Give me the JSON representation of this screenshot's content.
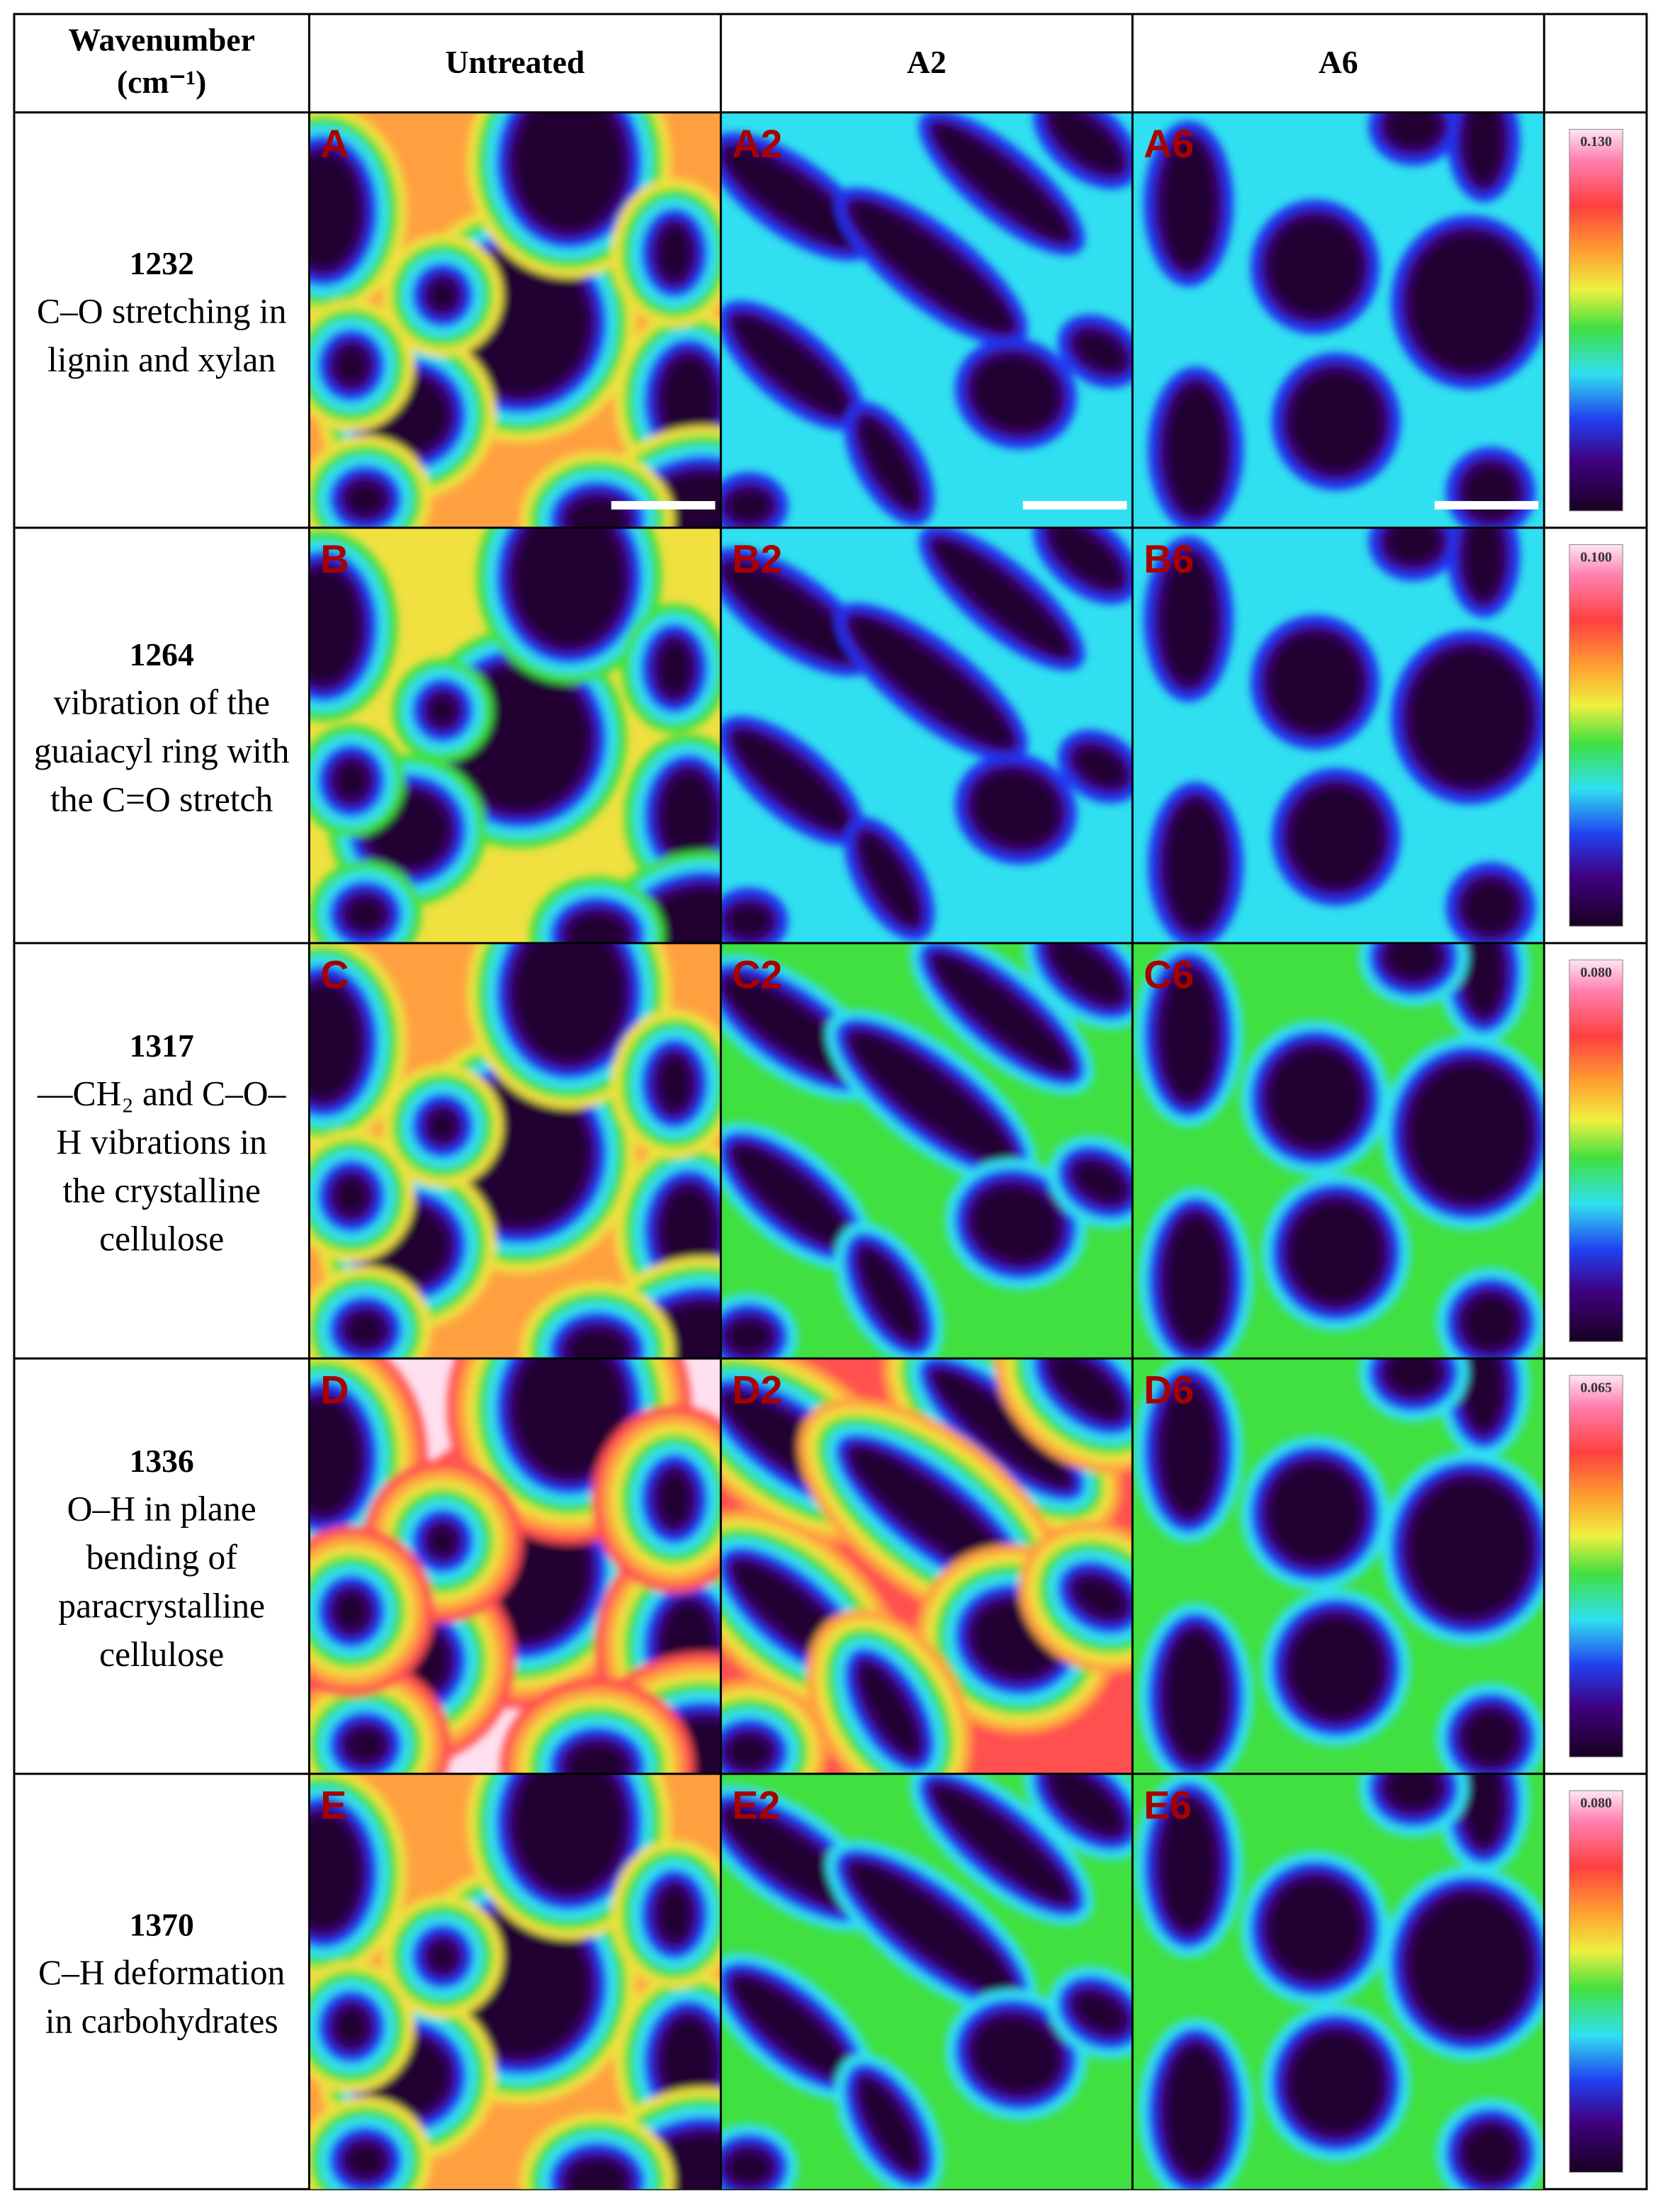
{
  "header": {
    "wavenumber": [
      "Wavenumber",
      "(cm⁻¹)"
    ],
    "columns": [
      "Untreated",
      "A2",
      "A6"
    ]
  },
  "rows": [
    {
      "wavenumber": "1232",
      "description": [
        "C–O stretching in",
        "lignin and xylan"
      ],
      "panels": [
        "A",
        "A2",
        "A6"
      ],
      "scale_max": "0.130"
    },
    {
      "wavenumber": "1264",
      "description": [
        "vibration of the",
        "guaiacyl ring with",
        "the C=O stretch"
      ],
      "panels": [
        "B",
        "B2",
        "B6"
      ],
      "scale_max": "0.100"
    },
    {
      "wavenumber": "1317",
      "description": [
        "—CH₂ and C–O–",
        "H vibrations in",
        "the crystalline",
        "cellulose"
      ],
      "panels": [
        "C",
        "C2",
        "C6"
      ],
      "scale_max": "0.080"
    },
    {
      "wavenumber": "1336",
      "description": [
        "O–H in plane",
        "bending of",
        "paracrystalline",
        "cellulose"
      ],
      "panels": [
        "D",
        "D2",
        "D6"
      ],
      "scale_max": "0.065"
    },
    {
      "wavenumber": "1370",
      "description": [
        "C–H deformation",
        "in carbohydrates"
      ],
      "panels": [
        "E",
        "E2",
        "E6"
      ],
      "scale_max": "0.080"
    }
  ]
}
